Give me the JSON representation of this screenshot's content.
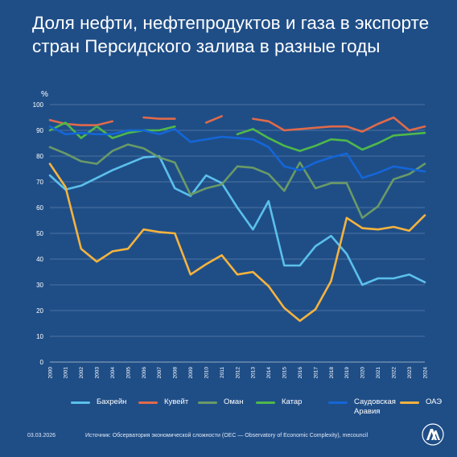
{
  "title": "Доля нефти, нефтепродуктов и газа в экспорте стран Персидского залива в разные годы",
  "footer": {
    "date": "03.03.2026",
    "source": "Источник: Обсерватория экономической сложности (OEC — Observatory of Economic Complexity), mecouncil"
  },
  "logo": {
    "name": "aa-logo"
  },
  "chart_data": {
    "type": "line",
    "unit_label": "%",
    "ylim": [
      0,
      100
    ],
    "yticks": [
      0,
      10,
      20,
      30,
      40,
      50,
      60,
      70,
      80,
      90,
      100
    ],
    "grid": true,
    "legend_position": "bottom",
    "x": [
      2000,
      2001,
      2002,
      2003,
      2004,
      2005,
      2006,
      2007,
      2008,
      2009,
      2010,
      2011,
      2012,
      2013,
      2014,
      2015,
      2016,
      2017,
      2018,
      2019,
      2020,
      2021,
      2022,
      2023,
      2024
    ],
    "series": [
      {
        "name": "Бахрейн",
        "color": "#5bc0eb",
        "values": [
          72.5,
          67,
          68.5,
          71.5,
          74.5,
          77,
          79.5,
          80,
          67.5,
          64.5,
          72.5,
          69.5,
          60,
          51.5,
          62.5,
          37.5,
          37.5,
          45,
          49,
          42,
          30,
          32.5,
          32.5,
          34,
          31
        ]
      },
      {
        "name": "Кувейт",
        "color": "#e06a4a",
        "values": [
          94,
          92.5,
          92,
          92,
          93.5,
          null,
          95,
          94.5,
          94.5,
          null,
          93,
          95.5,
          null,
          94.5,
          93.5,
          90,
          90.5,
          91,
          91.5,
          91.5,
          89.5,
          92.5,
          95,
          90,
          91.5
        ]
      },
      {
        "name": "Оман",
        "color": "#6a9a66",
        "values": [
          83.5,
          81,
          78,
          77,
          82,
          84.5,
          83,
          79.5,
          77.5,
          65,
          67.5,
          69,
          76,
          75.5,
          73,
          66.5,
          77.5,
          67.5,
          69.5,
          69.5,
          56,
          60.5,
          71,
          73,
          77
        ]
      },
      {
        "name": "Катар",
        "color": "#4fb84a",
        "values": [
          90,
          93,
          87,
          91.5,
          87,
          89,
          90,
          90,
          91.5,
          null,
          null,
          null,
          88.5,
          90.5,
          87,
          84,
          82,
          84,
          86.5,
          86,
          82.5,
          85,
          88,
          88.5,
          89
        ]
      },
      {
        "name": "Саудовская Аравия",
        "color": "#1466d8",
        "values": [
          91.5,
          88.5,
          89,
          88.5,
          88.5,
          90,
          90,
          88.5,
          90.5,
          85.5,
          86.5,
          87.5,
          87,
          86.5,
          83.5,
          76,
          74.5,
          77.5,
          79.5,
          81,
          71.5,
          73.5,
          76,
          75,
          74
        ]
      },
      {
        "name": "ОАЭ",
        "color": "#f5b33e",
        "values": [
          77,
          68,
          44,
          39,
          43,
          44,
          51.5,
          50.5,
          50,
          34,
          38,
          41.5,
          34,
          35,
          29.5,
          21,
          16,
          20.5,
          31.5,
          56,
          52,
          51.5,
          52.5,
          51,
          57
        ]
      }
    ]
  }
}
